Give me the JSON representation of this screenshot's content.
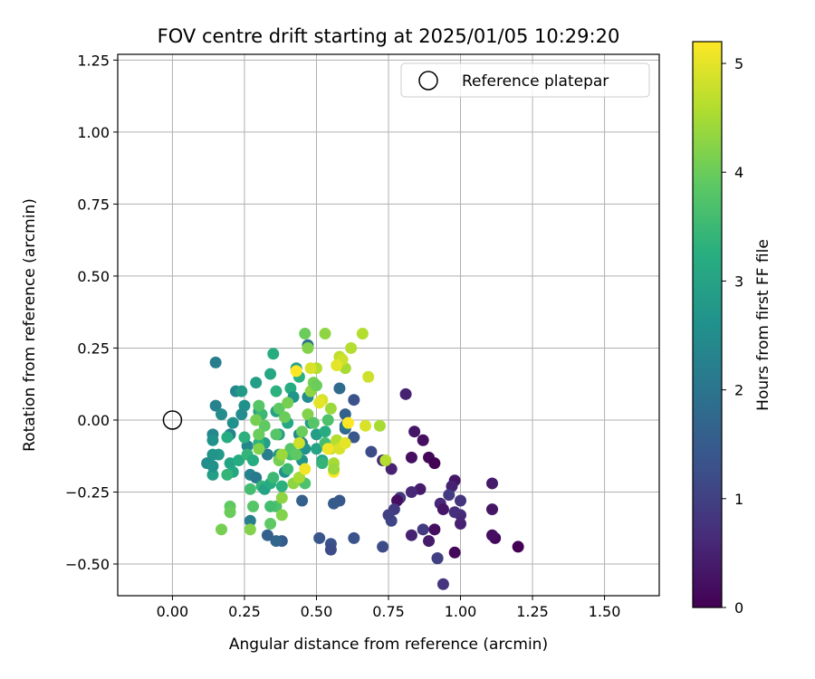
{
  "chart_data": {
    "type": "scatter",
    "title": "FOV centre drift starting at 2025/01/05 10:29:20",
    "xlabel": "Angular distance from reference (arcmin)",
    "ylabel": "Rotation from reference (arcmin)",
    "xlim": [
      -0.19,
      1.69
    ],
    "ylim": [
      -0.61,
      1.27
    ],
    "xticks": [
      0.0,
      0.25,
      0.5,
      0.75,
      1.0,
      1.25,
      1.5
    ],
    "xtick_labels": [
      "0.00",
      "0.25",
      "0.50",
      "0.75",
      "1.00",
      "1.25",
      "1.50"
    ],
    "yticks": [
      -0.5,
      -0.25,
      0.0,
      0.25,
      0.5,
      0.75,
      1.0,
      1.25
    ],
    "ytick_labels": [
      "−0.50",
      "−0.25",
      "0.00",
      "0.25",
      "0.50",
      "0.75",
      "1.00",
      "1.25"
    ],
    "grid": true,
    "legend": {
      "position": "top-right",
      "entries": [
        {
          "label": "Reference platepar",
          "marker": "open-circle"
        }
      ]
    },
    "colorbar": {
      "label": "Hours from first FF file",
      "range": [
        0,
        5.2
      ],
      "ticks": [
        0,
        1,
        2,
        3,
        4,
        5
      ],
      "tick_labels": [
        "0",
        "1",
        "2",
        "3",
        "4",
        "5"
      ],
      "colormap": "viridis"
    },
    "reference": {
      "x": 0.0,
      "y": 0.0
    },
    "point_columns": [
      "x",
      "y",
      "hours"
    ],
    "points": [
      [
        1.2,
        -0.44,
        0.0
      ],
      [
        1.12,
        -0.41,
        0.1
      ],
      [
        1.11,
        -0.4,
        0.2
      ],
      [
        1.11,
        -0.31,
        0.3
      ],
      [
        1.11,
        -0.22,
        0.4
      ],
      [
        1.0,
        -0.36,
        0.5
      ],
      [
        1.0,
        -0.33,
        0.6
      ],
      [
        0.98,
        -0.32,
        0.7
      ],
      [
        1.0,
        -0.28,
        0.8
      ],
      [
        0.98,
        -0.46,
        0.1
      ],
      [
        0.98,
        -0.21,
        0.3
      ],
      [
        0.97,
        -0.23,
        0.5
      ],
      [
        0.93,
        -0.29,
        0.6
      ],
      [
        0.91,
        -0.38,
        0.2
      ],
      [
        0.89,
        -0.42,
        0.4
      ],
      [
        0.87,
        -0.38,
        0.9
      ],
      [
        0.87,
        -0.07,
        0.2
      ],
      [
        0.89,
        -0.13,
        0.1
      ],
      [
        0.91,
        -0.15,
        0.0
      ],
      [
        0.86,
        -0.24,
        0.4
      ],
      [
        0.84,
        -0.04,
        0.3
      ],
      [
        0.83,
        -0.13,
        0.2
      ],
      [
        0.81,
        0.09,
        0.5
      ],
      [
        0.83,
        -0.25,
        0.6
      ],
      [
        0.83,
        -0.4,
        0.5
      ],
      [
        0.94,
        -0.57,
        0.8
      ],
      [
        0.92,
        -0.48,
        0.7
      ],
      [
        0.79,
        -0.27,
        0.8
      ],
      [
        0.78,
        -0.28,
        0.2
      ],
      [
        0.77,
        -0.31,
        0.9
      ],
      [
        0.76,
        -0.35,
        1.1
      ],
      [
        0.75,
        -0.33,
        1.0
      ],
      [
        0.76,
        -0.17,
        0.5
      ],
      [
        0.73,
        -0.44,
        1.2
      ],
      [
        0.73,
        -0.14,
        0.6
      ],
      [
        0.94,
        -0.31,
        0.3
      ],
      [
        0.96,
        -0.26,
        0.9
      ],
      [
        0.92,
        -0.48,
        1.0
      ],
      [
        0.69,
        -0.11,
        1.2
      ],
      [
        0.63,
        0.07,
        1.3
      ],
      [
        0.63,
        -0.06,
        1.4
      ],
      [
        0.63,
        -0.41,
        1.3
      ],
      [
        0.58,
        -0.28,
        1.4
      ],
      [
        0.56,
        -0.29,
        1.5
      ],
      [
        0.55,
        -0.43,
        1.3
      ],
      [
        0.55,
        -0.45,
        1.2
      ],
      [
        0.51,
        -0.41,
        1.4
      ],
      [
        0.6,
        0.02,
        1.6
      ],
      [
        0.58,
        0.11,
        1.8
      ],
      [
        0.6,
        -0.03,
        1.7
      ],
      [
        0.6,
        -0.02,
        2.0
      ],
      [
        0.45,
        -0.28,
        1.6
      ],
      [
        0.38,
        -0.42,
        1.5
      ],
      [
        0.36,
        -0.42,
        1.7
      ],
      [
        0.33,
        -0.4,
        1.6
      ],
      [
        0.47,
        0.26,
        1.9
      ],
      [
        0.15,
        0.2,
        2.2
      ],
      [
        0.15,
        0.05,
        2.3
      ],
      [
        0.17,
        0.02,
        2.5
      ],
      [
        0.14,
        -0.05,
        2.4
      ],
      [
        0.14,
        -0.07,
        2.6
      ],
      [
        0.16,
        -0.12,
        2.8
      ],
      [
        0.14,
        -0.12,
        2.7
      ],
      [
        0.12,
        -0.15,
        2.5
      ],
      [
        0.14,
        -0.19,
        2.9
      ],
      [
        0.14,
        -0.16,
        2.6
      ],
      [
        0.2,
        -0.05,
        2.3
      ],
      [
        0.21,
        -0.01,
        2.6
      ],
      [
        0.22,
        0.1,
        2.4
      ],
      [
        0.24,
        0.1,
        2.8
      ],
      [
        0.25,
        0.05,
        2.6
      ],
      [
        0.24,
        0.02,
        2.5
      ],
      [
        0.26,
        -0.09,
        2.4
      ],
      [
        0.27,
        -0.19,
        2.3
      ],
      [
        0.27,
        -0.35,
        2.2
      ],
      [
        0.29,
        -0.2,
        2.1
      ],
      [
        0.29,
        0.13,
        2.9
      ],
      [
        0.3,
        0.03,
        3.0
      ],
      [
        0.32,
        -0.08,
        2.9
      ],
      [
        0.33,
        -0.12,
        2.2
      ],
      [
        0.34,
        0.16,
        3.1
      ],
      [
        0.35,
        0.23,
        3.2
      ],
      [
        0.36,
        0.1,
        3.3
      ],
      [
        0.36,
        0.03,
        3.0
      ],
      [
        0.37,
        -0.05,
        2.9
      ],
      [
        0.37,
        -0.12,
        2.8
      ],
      [
        0.39,
        -0.18,
        2.6
      ],
      [
        0.4,
        -0.01,
        3.1
      ],
      [
        0.41,
        0.11,
        3.2
      ],
      [
        0.42,
        0.08,
        2.7
      ],
      [
        0.43,
        0.18,
        3.0
      ],
      [
        0.44,
        0.15,
        3.3
      ],
      [
        0.44,
        -0.05,
        2.5
      ],
      [
        0.45,
        -0.08,
        2.3
      ],
      [
        0.45,
        -0.14,
        2.7
      ],
      [
        0.46,
        -0.1,
        2.6
      ],
      [
        0.47,
        0.08,
        2.5
      ],
      [
        0.48,
        -0.01,
        2.8
      ],
      [
        0.5,
        -0.05,
        2.9
      ],
      [
        0.5,
        -0.1,
        3.0
      ],
      [
        0.52,
        -0.14,
        3.1
      ],
      [
        0.52,
        -0.15,
        3.4
      ],
      [
        0.53,
        -0.04,
        3.2
      ],
      [
        0.53,
        -0.08,
        3.6
      ],
      [
        0.54,
        0.0,
        3.7
      ],
      [
        0.2,
        -0.15,
        3.0
      ],
      [
        0.21,
        -0.18,
        3.1
      ],
      [
        0.23,
        -0.14,
        3.2
      ],
      [
        0.25,
        -0.06,
        3.3
      ],
      [
        0.26,
        -0.12,
        3.4
      ],
      [
        0.28,
        -0.14,
        3.2
      ],
      [
        0.3,
        -0.08,
        3.3
      ],
      [
        0.31,
        -0.23,
        3.4
      ],
      [
        0.32,
        -0.24,
        3.0
      ],
      [
        0.34,
        -0.22,
        3.2
      ],
      [
        0.35,
        -0.2,
        3.5
      ],
      [
        0.38,
        -0.23,
        3.3
      ],
      [
        0.4,
        -0.17,
        3.5
      ],
      [
        0.41,
        -0.12,
        3.6
      ],
      [
        0.44,
        -0.2,
        3.4
      ],
      [
        0.46,
        -0.22,
        3.7
      ],
      [
        0.19,
        -0.06,
        3.2
      ],
      [
        0.19,
        -0.19,
        3.4
      ],
      [
        0.27,
        -0.24,
        3.6
      ],
      [
        0.3,
        -0.05,
        3.7
      ],
      [
        0.31,
        0.02,
        3.5
      ],
      [
        0.32,
        -0.02,
        3.9
      ],
      [
        0.36,
        -0.05,
        3.8
      ],
      [
        0.37,
        0.04,
        3.9
      ],
      [
        0.39,
        0.01,
        4.0
      ],
      [
        0.4,
        0.06,
        4.1
      ],
      [
        0.41,
        -0.1,
        3.8
      ],
      [
        0.43,
        -0.12,
        3.9
      ],
      [
        0.45,
        -0.04,
        4.0
      ],
      [
        0.47,
        0.02,
        4.2
      ],
      [
        0.48,
        0.1,
        4.3
      ],
      [
        0.49,
        0.13,
        4.1
      ],
      [
        0.49,
        -0.01,
        3.8
      ],
      [
        0.5,
        0.12,
        4.0
      ],
      [
        0.2,
        -0.3,
        3.9
      ],
      [
        0.2,
        -0.32,
        4.0
      ],
      [
        0.17,
        -0.38,
        4.1
      ],
      [
        0.27,
        -0.38,
        4.2
      ],
      [
        0.28,
        -0.3,
        3.8
      ],
      [
        0.34,
        -0.36,
        3.9
      ],
      [
        0.36,
        -0.3,
        3.7
      ],
      [
        0.38,
        -0.33,
        4.2
      ],
      [
        0.38,
        -0.27,
        4.3
      ],
      [
        0.34,
        -0.3,
        3.6
      ],
      [
        0.3,
        0.05,
        3.8
      ],
      [
        0.3,
        -0.05,
        4.0
      ],
      [
        0.29,
        0.0,
        4.1
      ],
      [
        0.3,
        -0.1,
        4.2
      ],
      [
        0.37,
        -0.14,
        4.1
      ],
      [
        0.42,
        -0.22,
        4.3
      ],
      [
        0.38,
        -0.12,
        4.4
      ],
      [
        0.44,
        -0.2,
        4.5
      ],
      [
        0.46,
        0.3,
        4.0
      ],
      [
        0.47,
        0.25,
        4.2
      ],
      [
        0.53,
        0.3,
        4.3
      ],
      [
        0.55,
        0.04,
        4.4
      ],
      [
        0.56,
        -0.15,
        4.5
      ],
      [
        0.57,
        -0.07,
        4.6
      ],
      [
        0.55,
        -0.1,
        4.7
      ],
      [
        0.6,
        0.18,
        4.5
      ],
      [
        0.62,
        0.25,
        4.6
      ],
      [
        0.58,
        0.22,
        4.7
      ],
      [
        0.59,
        0.21,
        4.8
      ],
      [
        0.5,
        0.18,
        4.6
      ],
      [
        0.52,
        0.07,
        4.9
      ],
      [
        0.51,
        0.06,
        5.0
      ],
      [
        0.57,
        0.19,
        5.0
      ],
      [
        0.54,
        -0.1,
        5.1
      ],
      [
        0.58,
        -0.1,
        4.9
      ],
      [
        0.61,
        -0.01,
        5.2
      ],
      [
        0.67,
        -0.02,
        4.9
      ],
      [
        0.66,
        0.3,
        4.6
      ],
      [
        0.68,
        0.15,
        4.8
      ],
      [
        0.72,
        -0.02,
        4.5
      ],
      [
        0.74,
        -0.14,
        4.6
      ],
      [
        0.44,
        -0.08,
        4.8
      ],
      [
        0.46,
        -0.17,
        5.1
      ],
      [
        0.43,
        0.17,
        5.2
      ],
      [
        0.48,
        0.18,
        4.9
      ],
      [
        0.6,
        -0.08,
        5.0
      ],
      [
        0.56,
        -0.18,
        5.2
      ],
      [
        0.56,
        -0.17,
        4.4
      ]
    ]
  }
}
